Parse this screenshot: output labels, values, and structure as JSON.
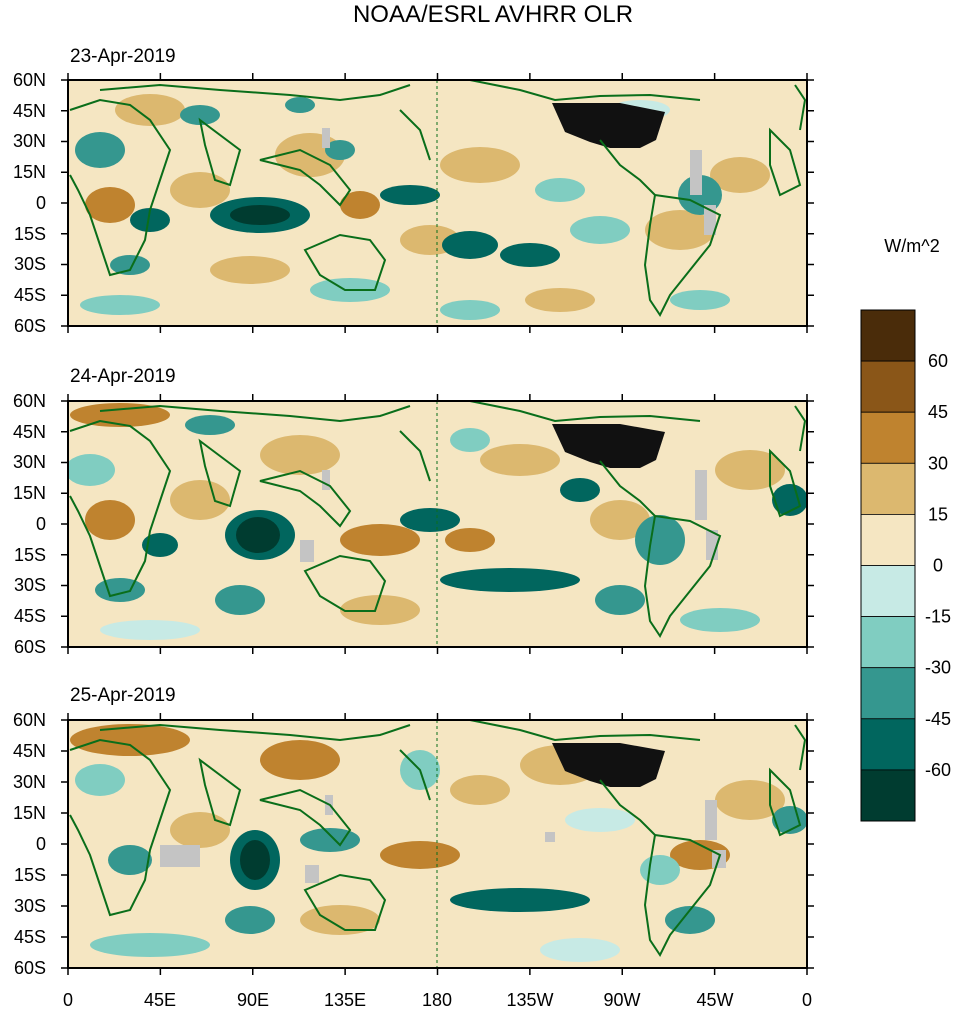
{
  "figure": {
    "title": "NOAA/ESRL AVHRR OLR",
    "units": "W/m^2",
    "variable": "outgoing longwave radiation anomaly"
  },
  "panels": [
    {
      "date": "23-Apr-2019"
    },
    {
      "date": "24-Apr-2019"
    },
    {
      "date": "25-Apr-2019"
    }
  ],
  "axes": {
    "lat_ticks": [
      "60N",
      "45N",
      "30N",
      "15N",
      "0",
      "15S",
      "30S",
      "45S",
      "60S"
    ],
    "lon_ticks": [
      "0",
      "45E",
      "90E",
      "135E",
      "180",
      "135W",
      "90W",
      "45W",
      "0"
    ]
  },
  "colorbar": {
    "labels": [
      "60",
      "45",
      "30",
      "15",
      "0",
      "-15",
      "-30",
      "-45",
      "-60"
    ],
    "colors": [
      "#4a2c0a",
      "#8a5618",
      "#bf832f",
      "#dcb86f",
      "#f5e6c2",
      "#c7eae5",
      "#80cdc1",
      "#35978f",
      "#01665e",
      "#003c30"
    ]
  },
  "colors": {
    "coast": "#0a6e1a",
    "land_fill": "#e8d6a5",
    "missing": "#c4c4c4",
    "na_dense": "#111111"
  }
}
